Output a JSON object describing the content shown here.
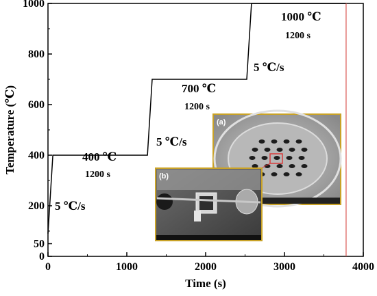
{
  "chart_data": {
    "type": "line",
    "xlabel": "Time (s)",
    "ylabel": "Temperature (℃)",
    "xlim": [
      0,
      4000
    ],
    "ylim": [
      0,
      1000
    ],
    "xticks": [
      0,
      1000,
      2000,
      3000,
      4000
    ],
    "yticks": [
      0,
      50,
      200,
      400,
      600,
      800,
      1000
    ],
    "grid": false,
    "series": [
      {
        "color": "#000000",
        "x": [
          0,
          62,
          1262,
          1322,
          2522,
          2582,
          3782
        ],
        "y": [
          90,
          400,
          400,
          700,
          700,
          1000,
          1000
        ]
      }
    ],
    "end_marker": {
      "x": 3782,
      "color": "#d9544f"
    },
    "annotations": {
      "stage1_temp": "400 ℃",
      "stage1_time": "1200 s",
      "stage2_temp": "700 ℃",
      "stage2_time": "1200 s",
      "stage3_temp": "1000 ℃",
      "stage3_time": "1200 s",
      "rate1": "5 ℃/s",
      "rate2": "5 ℃/s",
      "rate3": "5 ℃/s"
    },
    "insets": [
      {
        "label": "(a)",
        "border_color": "#c9a227"
      },
      {
        "label": "(b)",
        "border_color": "#c9a227"
      }
    ]
  }
}
